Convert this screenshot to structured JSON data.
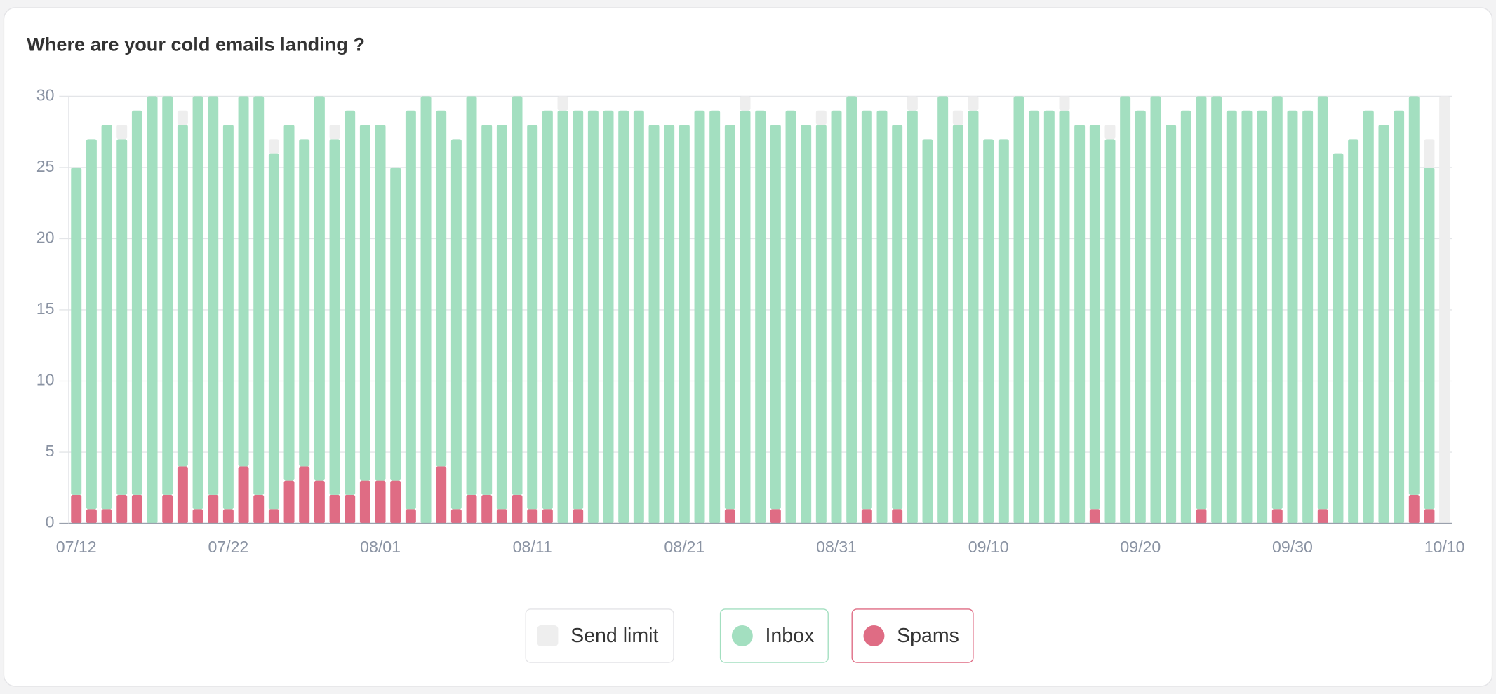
{
  "chart_data": {
    "type": "bar",
    "stacked": true,
    "title": "Where are your cold emails landing ?",
    "categories": [
      "07/12",
      null,
      null,
      null,
      null,
      null,
      null,
      null,
      null,
      null,
      "07/22",
      null,
      null,
      null,
      null,
      null,
      null,
      null,
      null,
      null,
      "08/01",
      null,
      null,
      null,
      null,
      null,
      null,
      null,
      null,
      null,
      "08/11",
      null,
      null,
      null,
      null,
      null,
      null,
      null,
      null,
      null,
      "08/21",
      null,
      null,
      null,
      null,
      null,
      null,
      null,
      null,
      null,
      "08/31",
      null,
      null,
      null,
      null,
      null,
      null,
      null,
      null,
      null,
      "09/10",
      null,
      null,
      null,
      null,
      null,
      null,
      null,
      null,
      null,
      "09/20",
      null,
      null,
      null,
      null,
      null,
      null,
      null,
      null,
      null,
      "09/30",
      null,
      null,
      null,
      null,
      null,
      null,
      null,
      null,
      null,
      "10/10"
    ],
    "series": [
      {
        "name": "Send limit",
        "color": "#eeeeee",
        "values": [
          0,
          0,
          0,
          1,
          0,
          0,
          0,
          1,
          0,
          0,
          0,
          0,
          0,
          1,
          0,
          0,
          0,
          1,
          0,
          0,
          0,
          0,
          0,
          0,
          0,
          0,
          0,
          0,
          0,
          0,
          0,
          0,
          1,
          0,
          0,
          0,
          0,
          0,
          0,
          0,
          0,
          0,
          0,
          0,
          1,
          0,
          0,
          0,
          0,
          1,
          0,
          0,
          0,
          0,
          0,
          1,
          0,
          0,
          1,
          1,
          0,
          0,
          0,
          0,
          0,
          1,
          0,
          0,
          1,
          0,
          0,
          0,
          0,
          0,
          0,
          0,
          0,
          0,
          0,
          0,
          0,
          0,
          0,
          0,
          0,
          0,
          0,
          0,
          0,
          2,
          30
        ]
      },
      {
        "name": "Inbox",
        "color": "#a3dfc0",
        "values": [
          23,
          26,
          27,
          25,
          27,
          30,
          28,
          24,
          29,
          28,
          27,
          26,
          28,
          25,
          25,
          23,
          27,
          25,
          27,
          25,
          25,
          22,
          28,
          30,
          25,
          26,
          28,
          26,
          27,
          28,
          27,
          28,
          29,
          28,
          29,
          29,
          29,
          29,
          28,
          28,
          28,
          29,
          29,
          27,
          29,
          29,
          27,
          29,
          28,
          28,
          29,
          30,
          28,
          29,
          27,
          29,
          27,
          30,
          28,
          29,
          27,
          27,
          30,
          29,
          29,
          29,
          28,
          27,
          27,
          30,
          29,
          30,
          28,
          29,
          29,
          30,
          29,
          29,
          29,
          29,
          29,
          29,
          29,
          26,
          27,
          29,
          28,
          29,
          28,
          24,
          0
        ]
      },
      {
        "name": "Spams",
        "color": "#df6c84",
        "values": [
          2,
          1,
          1,
          2,
          2,
          0,
          2,
          4,
          1,
          2,
          1,
          4,
          2,
          1,
          3,
          4,
          3,
          2,
          2,
          3,
          3,
          3,
          1,
          0,
          4,
          1,
          2,
          2,
          1,
          2,
          1,
          1,
          0,
          1,
          0,
          0,
          0,
          0,
          0,
          0,
          0,
          0,
          0,
          1,
          0,
          0,
          1,
          0,
          0,
          0,
          0,
          0,
          1,
          0,
          1,
          0,
          0,
          0,
          0,
          0,
          0,
          0,
          0,
          0,
          0,
          0,
          0,
          1,
          0,
          0,
          0,
          0,
          0,
          0,
          1,
          0,
          0,
          0,
          0,
          1,
          0,
          0,
          1,
          0,
          0,
          0,
          0,
          0,
          2,
          1,
          0
        ]
      }
    ],
    "ylim": [
      0,
      30
    ],
    "yticks": [
      0,
      5,
      10,
      15,
      20,
      25,
      30
    ],
    "grid": true
  }
}
